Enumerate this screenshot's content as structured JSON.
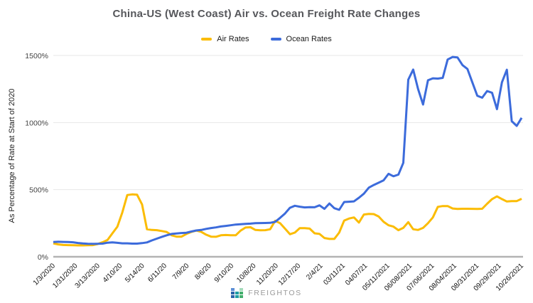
{
  "title": "China-US (West Coast) Air vs. Ocean Freight Rate Changes",
  "y_axis": {
    "title": "As Percentage of Rate at Start of 2020",
    "ticks": [
      "0%",
      "500%",
      "1000%",
      "1500%"
    ],
    "tick_values": [
      0,
      500,
      1000,
      1500
    ]
  },
  "footer": {
    "brand": "FREIGHTOS",
    "logo_colors": [
      "#5c8fd6",
      "#2b64a9",
      "#1e9da3",
      "#43ae6c",
      "#a4dbba"
    ]
  },
  "chart_data": {
    "type": "line",
    "title": "China-US (West Coast) Air vs. Ocean Freight Rate Changes",
    "xlabel": "",
    "ylabel": "As Percentage of Rate at Start of 2020",
    "ylim": [
      0,
      1500
    ],
    "grid": true,
    "legend_position": "top",
    "x_tick_labels": [
      "1/3/2020",
      "1/31/2020",
      "3/13/2020",
      "4/10/20",
      "5/14/20",
      "6/11/20",
      "7/9/20",
      "8/6/20",
      "9/10/20",
      "10/8/20",
      "11/20/20",
      "12/17/20",
      "2/4/21",
      "03/11/21",
      "04/07/21",
      "05/11/2021",
      "06/08/2021",
      "07/06/2021",
      "08/04/2021",
      "08/31/2021",
      "09/29/2021",
      "10/26/2021"
    ],
    "x_unit": "weekly observations from 1/3/2020 to 10/26/2021",
    "series": [
      {
        "name": "Air Rates",
        "color": "#fbbc04",
        "values": [
          100,
          92,
          88,
          87,
          86,
          85,
          85,
          86,
          87,
          95,
          108,
          125,
          175,
          225,
          330,
          460,
          465,
          462,
          390,
          205,
          200,
          198,
          192,
          185,
          160,
          150,
          150,
          170,
          185,
          195,
          186,
          165,
          150,
          149,
          160,
          162,
          160,
          160,
          195,
          218,
          220,
          200,
          197,
          198,
          205,
          268,
          250,
          210,
          168,
          180,
          213,
          213,
          210,
          175,
          170,
          140,
          133,
          133,
          180,
          270,
          285,
          293,
          255,
          315,
          319,
          318,
          300,
          260,
          235,
          225,
          198,
          215,
          258,
          205,
          200,
          215,
          250,
          293,
          372,
          378,
          378,
          360,
          356,
          358,
          358,
          357,
          356,
          358,
          395,
          430,
          450,
          430,
          412,
          415,
          415,
          432
        ]
      },
      {
        "name": "Ocean Rates",
        "color": "#3c6bdb",
        "values": [
          110,
          112,
          111,
          110,
          108,
          103,
          99,
          97,
          96,
          97,
          98,
          105,
          107,
          104,
          100,
          100,
          98,
          98,
          102,
          107,
          122,
          135,
          148,
          160,
          170,
          174,
          177,
          179,
          188,
          196,
          200,
          208,
          214,
          219,
          226,
          230,
          235,
          240,
          243,
          245,
          247,
          250,
          251,
          252,
          253,
          260,
          290,
          322,
          365,
          380,
          373,
          368,
          370,
          369,
          383,
          357,
          397,
          362,
          350,
          408,
          410,
          413,
          440,
          470,
          515,
          535,
          552,
          570,
          618,
          600,
          612,
          700,
          1320,
          1395,
          1250,
          1135,
          1315,
          1330,
          1328,
          1333,
          1470,
          1489,
          1485,
          1428,
          1400,
          1300,
          1200,
          1185,
          1235,
          1222,
          1100,
          1300,
          1394,
          1010,
          975,
          1035
        ]
      }
    ]
  }
}
